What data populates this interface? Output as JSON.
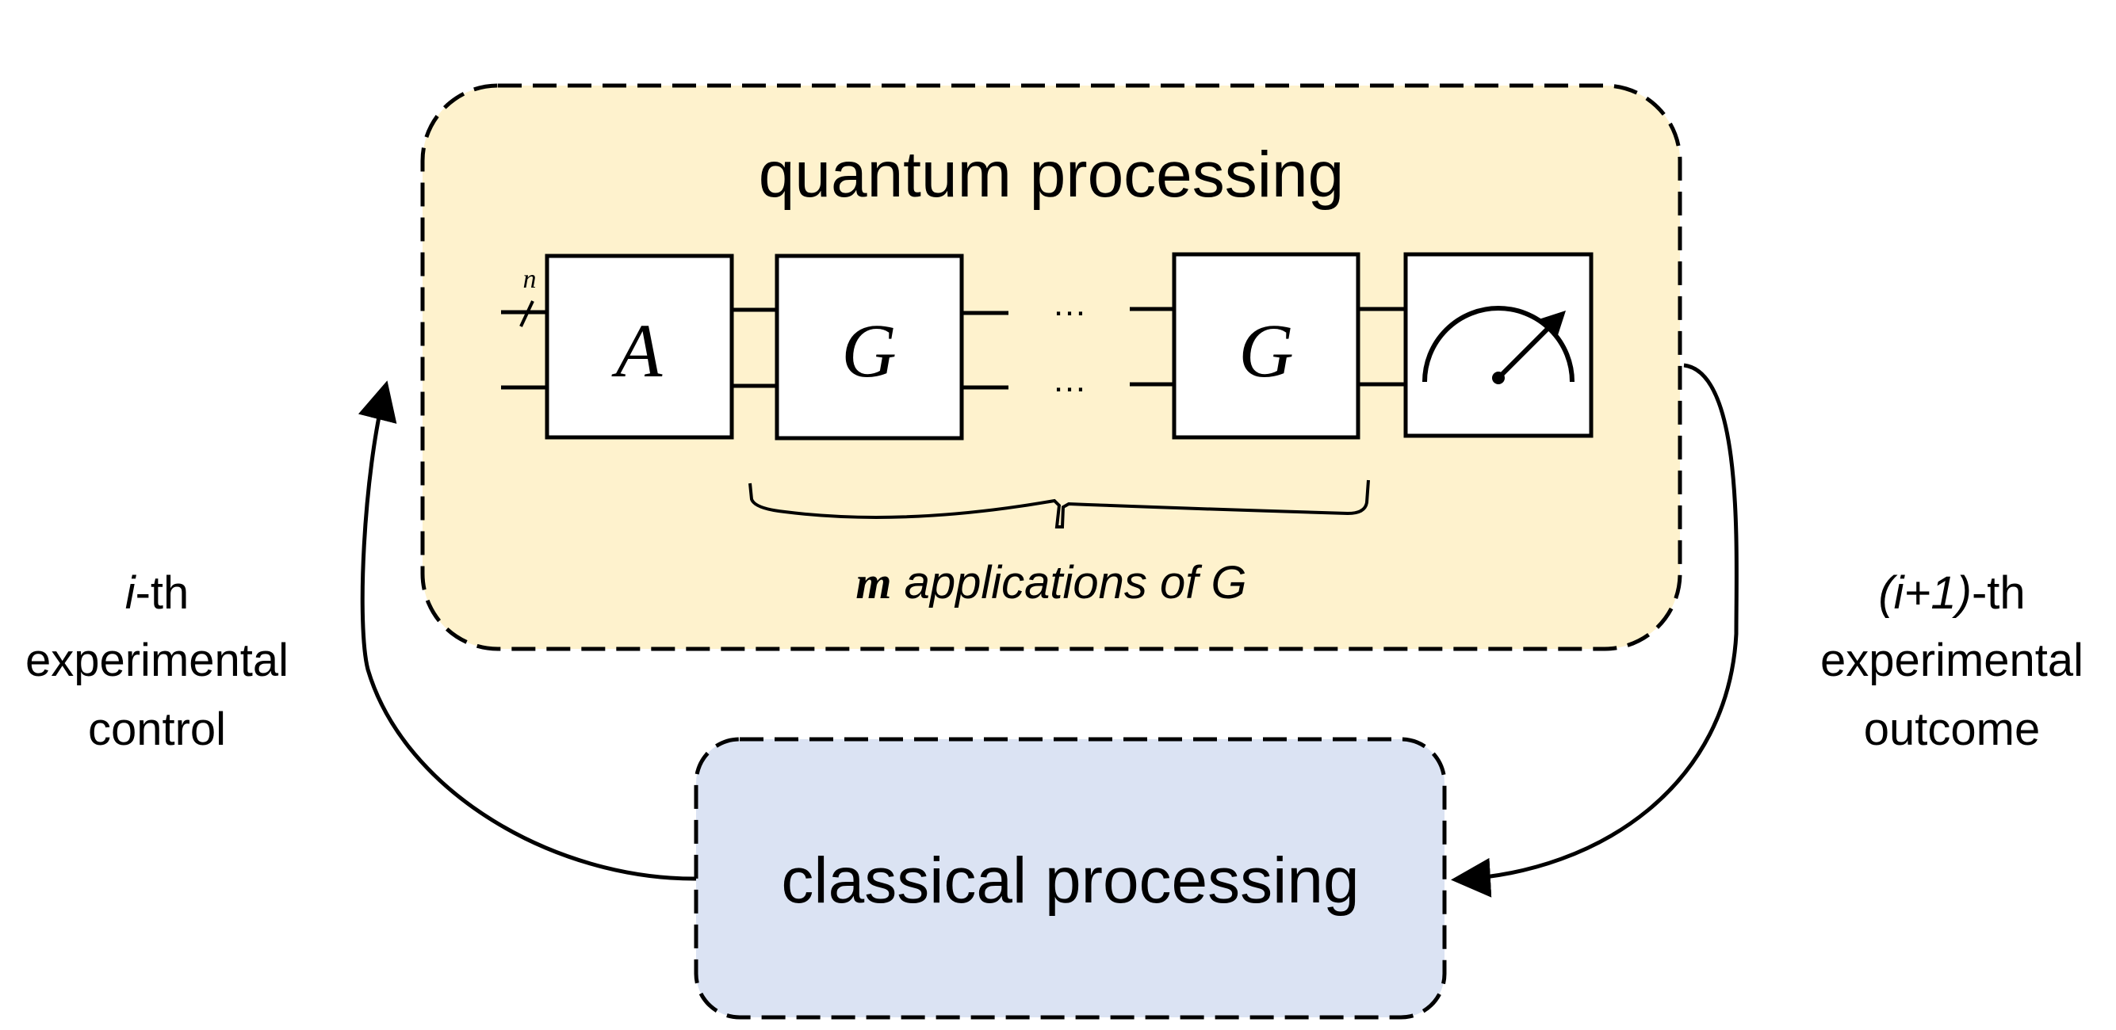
{
  "colors": {
    "quantum_box_fill": "#fef2cd",
    "classical_box_fill": "#dbe3f3",
    "stroke": "#000000",
    "gate_fill": "#ffffff"
  },
  "quantum_box": {
    "title": "quantum processing",
    "register_label": "n",
    "gates": {
      "a_label": "A",
      "g1_label": "G",
      "g2_label": "G",
      "measurement_icon": "meter-icon"
    },
    "ellipsis_top": "…",
    "ellipsis_bottom": "…",
    "brace_label": {
      "m": "m",
      "text": " applications of G"
    }
  },
  "classical_box": {
    "title": "classical processing"
  },
  "left_label": {
    "line1_italic": "i",
    "line1_rest": "-th",
    "line2": "experimental",
    "line3": "control"
  },
  "right_label": {
    "line1_italic": "(i+1)",
    "line1_rest": "-th",
    "line2": "experimental",
    "line3": "outcome"
  }
}
